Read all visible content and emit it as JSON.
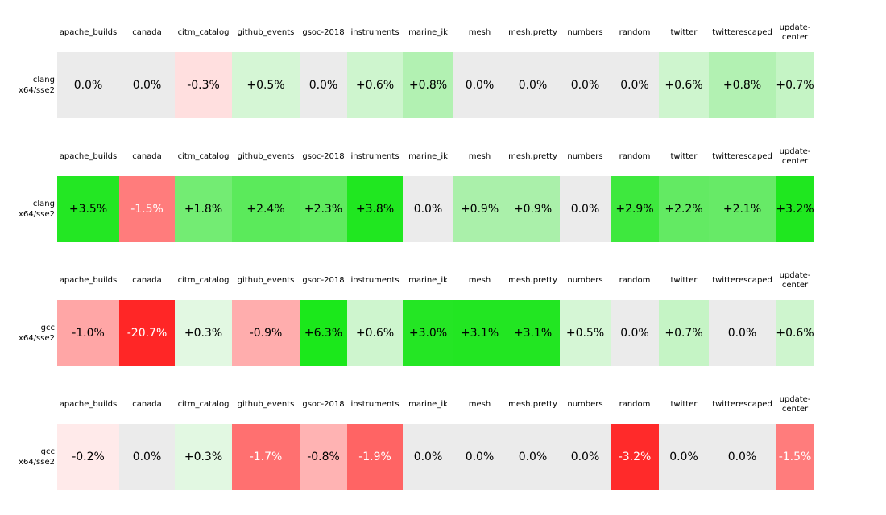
{
  "headers": [
    "apache_builds",
    "canada",
    "citm_catalog",
    "github_events",
    "gsoc-2018",
    "instruments",
    "marine_ik",
    "mesh",
    "mesh.pretty",
    "numbers",
    "random",
    "twitter",
    "twitterescaped",
    "update-\ncenter"
  ],
  "zero_color": "#ebebeb",
  "groups": [
    {
      "label_line1": "clang",
      "label_line2": "x64/sse2",
      "cells": [
        "0.0%",
        "0.0%",
        "-0.3%",
        "+0.5%",
        "0.0%",
        "+0.6%",
        "+0.8%",
        "0.0%",
        "0.0%",
        "0.0%",
        "0.0%",
        "+0.6%",
        "+0.8%",
        "+0.7%"
      ],
      "colors": [
        "#ebebeb",
        "#ebebeb",
        "#ffdfdf",
        "#d5f6d5",
        "#ebebeb",
        "#cef5ce",
        "#b2f1b2",
        "#ebebeb",
        "#ebebeb",
        "#ebebeb",
        "#ebebeb",
        "#cef5ce",
        "#b2f1b2",
        "#c5f4c5"
      ],
      "text_colors": [
        "#000000",
        "#000000",
        "#000000",
        "#000000",
        "#000000",
        "#000000",
        "#000000",
        "#000000",
        "#000000",
        "#000000",
        "#000000",
        "#000000",
        "#000000",
        "#000000"
      ]
    },
    {
      "label_line1": "clang",
      "label_line2": "x64/sse2",
      "cells": [
        "+3.5%",
        "-1.5%",
        "+1.8%",
        "+2.4%",
        "+2.3%",
        "+3.8%",
        "0.0%",
        "+0.9%",
        "+0.9%",
        "0.0%",
        "+2.9%",
        "+2.2%",
        "+2.1%",
        "+3.2%"
      ],
      "colors": [
        "#23e723",
        "#ff7c7c",
        "#73ec73",
        "#5bea5b",
        "#5fea5f",
        "#20e720",
        "#ebebeb",
        "#aaf0aa",
        "#aaf0aa",
        "#ebebeb",
        "#3ee83e",
        "#63ea63",
        "#67ea67",
        "#1fe71f"
      ],
      "text_colors": [
        "#000000",
        "#ffffff",
        "#000000",
        "#000000",
        "#000000",
        "#000000",
        "#000000",
        "#000000",
        "#000000",
        "#000000",
        "#000000",
        "#000000",
        "#000000",
        "#000000"
      ]
    },
    {
      "label_line1": "gcc",
      "label_line2": "x64/sse2",
      "cells": [
        "-1.0%",
        "-20.7%",
        "+0.3%",
        "-0.9%",
        "+6.3%",
        "+0.6%",
        "+3.0%",
        "+3.1%",
        "+3.1%",
        "+0.5%",
        "0.0%",
        "+0.7%",
        "0.0%",
        "+0.6%"
      ],
      "colors": [
        "#ffa6a6",
        "#ff2626",
        "#e2f8e2",
        "#ffadad",
        "#1be81b",
        "#cef5ce",
        "#24e624",
        "#22e622",
        "#22e622",
        "#d5f6d5",
        "#ebebeb",
        "#c5f4c5",
        "#ebebeb",
        "#cef5ce"
      ],
      "text_colors": [
        "#000000",
        "#ffffff",
        "#000000",
        "#000000",
        "#000000",
        "#000000",
        "#000000",
        "#000000",
        "#000000",
        "#000000",
        "#000000",
        "#000000",
        "#000000",
        "#000000"
      ]
    },
    {
      "label_line1": "gcc",
      "label_line2": "x64/sse2",
      "cells": [
        "-0.2%",
        "0.0%",
        "+0.3%",
        "-1.7%",
        "-0.8%",
        "-1.9%",
        "0.0%",
        "0.0%",
        "0.0%",
        "0.0%",
        "-3.2%",
        "0.0%",
        "0.0%",
        "-1.5%"
      ],
      "colors": [
        "#ffeaea",
        "#ebebeb",
        "#e2f8e2",
        "#ff7070",
        "#ffb3b3",
        "#ff6464",
        "#ebebeb",
        "#ebebeb",
        "#ebebeb",
        "#ebebeb",
        "#ff2a2a",
        "#ebebeb",
        "#ebebeb",
        "#ff7c7c"
      ],
      "text_colors": [
        "#000000",
        "#000000",
        "#000000",
        "#ffffff",
        "#000000",
        "#ffffff",
        "#000000",
        "#000000",
        "#000000",
        "#000000",
        "#ffffff",
        "#000000",
        "#000000",
        "#ffffff"
      ]
    }
  ],
  "chart_data": {
    "type": "heatmap",
    "unit": "%",
    "columns": [
      "apache_builds",
      "canada",
      "citm_catalog",
      "github_events",
      "gsoc-2018",
      "instruments",
      "marine_ik",
      "mesh",
      "mesh.pretty",
      "numbers",
      "random",
      "twitter",
      "twitterescaped",
      "update-center"
    ],
    "rows": [
      {
        "label": "clang x64/sse2",
        "values": [
          0.0,
          0.0,
          -0.3,
          0.5,
          0.0,
          0.6,
          0.8,
          0.0,
          0.0,
          0.0,
          0.0,
          0.6,
          0.8,
          0.7
        ]
      },
      {
        "label": "clang x64/sse2",
        "values": [
          3.5,
          -1.5,
          1.8,
          2.4,
          2.3,
          3.8,
          0.0,
          0.9,
          0.9,
          0.0,
          2.9,
          2.2,
          2.1,
          3.2
        ]
      },
      {
        "label": "gcc x64/sse2",
        "values": [
          -1.0,
          -20.7,
          0.3,
          -0.9,
          6.3,
          0.6,
          3.0,
          3.1,
          3.1,
          0.5,
          0.0,
          0.7,
          0.0,
          0.6
        ]
      },
      {
        "label": "gcc x64/sse2",
        "values": [
          -0.2,
          0.0,
          0.3,
          -1.7,
          -0.8,
          -1.9,
          0.0,
          0.0,
          0.0,
          0.0,
          -3.2,
          0.0,
          0.0,
          -1.5
        ]
      }
    ],
    "legend": "off",
    "grid": "off",
    "positive_color": "#1fe71f",
    "negative_color": "#ff2626",
    "zero_color": "#ebebeb"
  }
}
